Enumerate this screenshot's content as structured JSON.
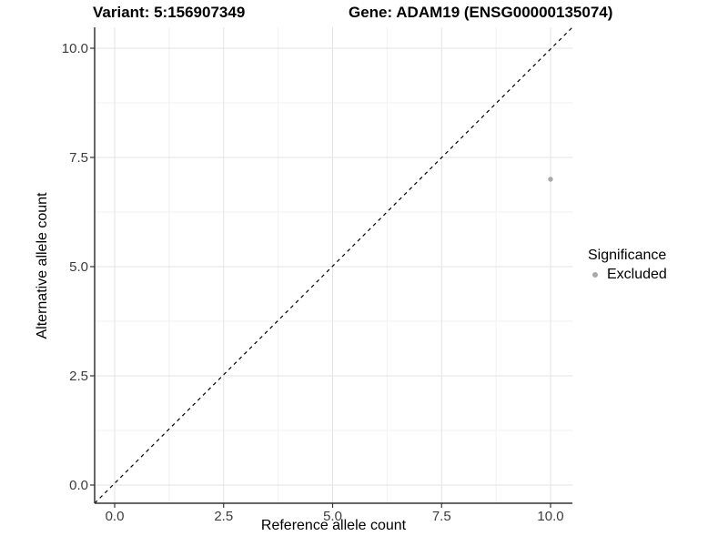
{
  "titles": {
    "variant": "Variant: 5:156907349",
    "gene": "Gene: ADAM19 (ENSG00000135074)"
  },
  "chart_data": {
    "type": "scatter",
    "title": "Variant: 5:156907349   Gene: ADAM19 (ENSG00000135074)",
    "xlabel": "Reference allele count",
    "ylabel": "Alternative allele count",
    "x_ticks": [
      0,
      2.5,
      5,
      7.5,
      10
    ],
    "x_tick_labels": [
      "0.0",
      "2.5",
      "5.0",
      "7.5",
      "10.0"
    ],
    "y_ticks": [
      0,
      2.5,
      5,
      7.5,
      10
    ],
    "y_tick_labels": [
      "0.0",
      "2.5",
      "5.0",
      "7.5",
      "10.0"
    ],
    "xlim": [
      -0.5,
      10.5
    ],
    "ylim": [
      -0.5,
      10.5
    ],
    "grid": true,
    "reference_line": {
      "type": "identity y=x",
      "style": "dashed",
      "color": "#000000"
    },
    "series": [
      {
        "name": "Excluded",
        "color": "#a9a9a9",
        "points": [
          {
            "x": 10,
            "y": 7
          }
        ]
      }
    ],
    "legend": {
      "title": "Significance",
      "position": "right",
      "entries": [
        {
          "label": "Excluded",
          "color": "#a9a9a9"
        }
      ]
    },
    "colors": {
      "grid_major": "#e3e3e3",
      "grid_minor": "#f1f1f1",
      "axis_line": "#333333",
      "tick_label": "#3c3c3c"
    }
  }
}
